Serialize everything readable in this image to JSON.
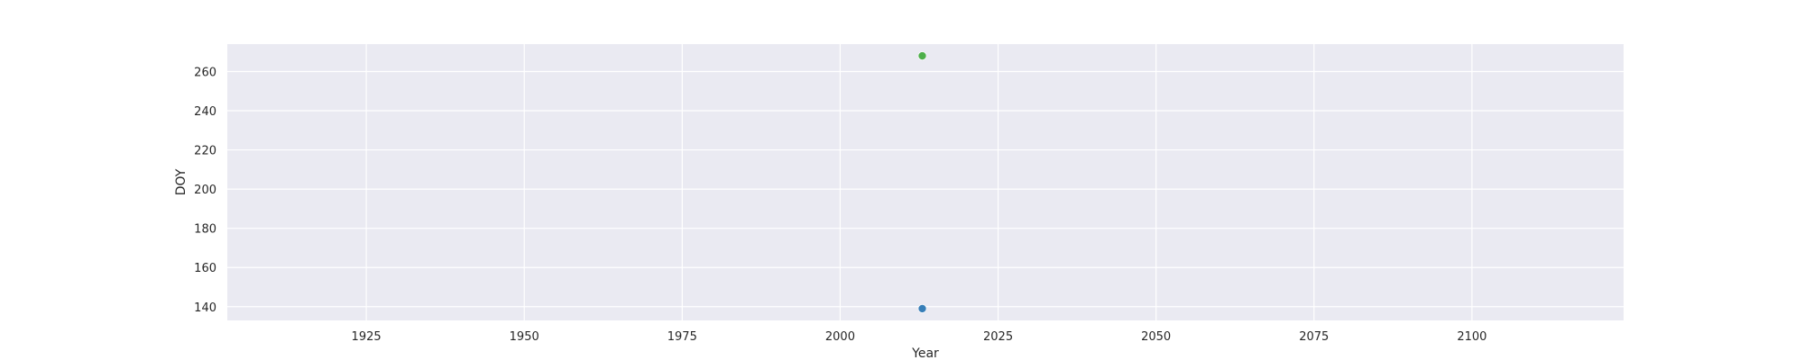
{
  "chart_data": {
    "type": "scatter",
    "title": "",
    "xlabel": "Year",
    "ylabel": "DOY",
    "xlim": [
      1903,
      2124
    ],
    "ylim": [
      133,
      274
    ],
    "xticks": [
      1925,
      1950,
      1975,
      2000,
      2025,
      2050,
      2075,
      2100
    ],
    "yticks": [
      140,
      160,
      180,
      200,
      220,
      240,
      260
    ],
    "grid": true,
    "background_color": "#eaeaf2",
    "grid_color": "#ffffff",
    "points": [
      {
        "x": 2013,
        "y": 268,
        "color": "#4daf4a"
      },
      {
        "x": 2013,
        "y": 139,
        "color": "#377eb8"
      }
    ]
  }
}
